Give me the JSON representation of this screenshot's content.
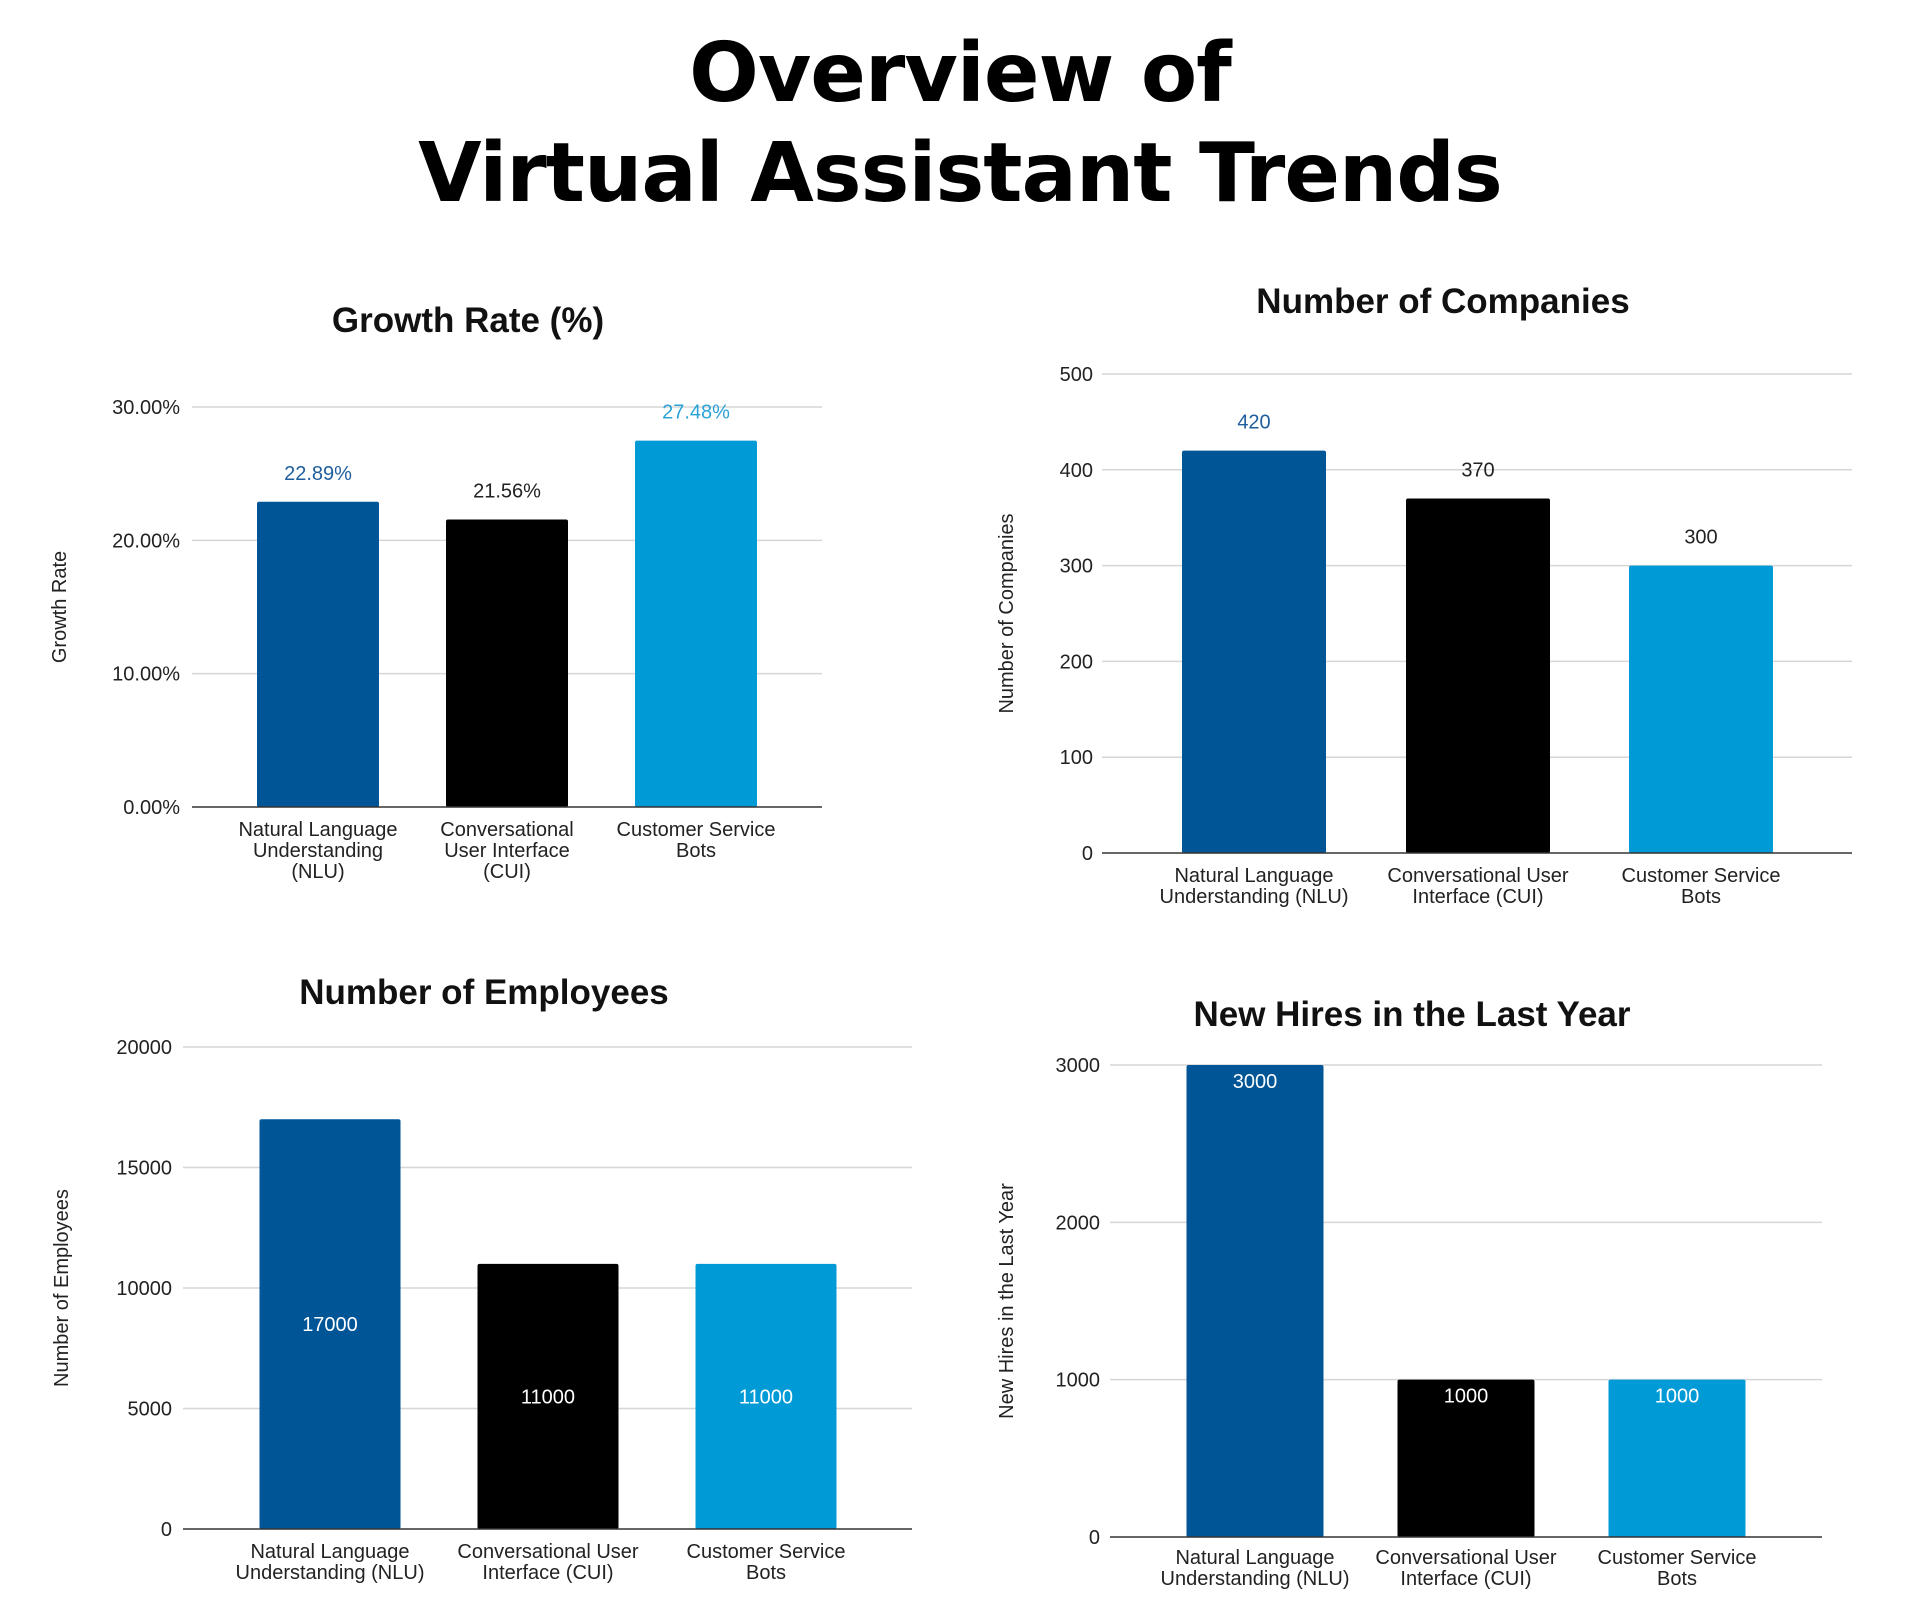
{
  "page": {
    "title_line1": "Overview of",
    "title_line2": "Virtual Assistant Trends"
  },
  "colors": {
    "nlu": "#005597",
    "cui": "#000000",
    "csb": "#009ad7"
  },
  "chart_data": [
    {
      "type": "bar",
      "title": "Growth Rate (%)",
      "ylabel": "Growth Rate",
      "xlabel": "",
      "categories": [
        "Natural Language Understanding (NLU)",
        "Conversational User Interface (CUI)",
        "Customer Service Bots"
      ],
      "category_lines": [
        [
          "Natural Language",
          "Understanding",
          "(NLU)"
        ],
        [
          "Conversational",
          "User Interface",
          "(CUI)"
        ],
        [
          "Customer Service",
          "Bots"
        ]
      ],
      "values": [
        22.89,
        21.56,
        27.48
      ],
      "data_labels": [
        "22.89%",
        "21.56%",
        "27.48%"
      ],
      "data_label_colors": [
        "#1f5e9c",
        "#222222",
        "#2ba3d6"
      ],
      "data_label_position": "above",
      "ylim": [
        0,
        30
      ],
      "yticks": [
        0,
        10,
        20,
        30
      ],
      "ytick_labels": [
        "0.00%",
        "10.00%",
        "20.00%",
        "30.00%"
      ],
      "grid": true
    },
    {
      "type": "bar",
      "title": "Number of Companies",
      "ylabel": "Number of Companies",
      "xlabel": "",
      "categories": [
        "Natural Language Understanding (NLU)",
        "Conversational User Interface (CUI)",
        "Customer Service Bots"
      ],
      "category_lines": [
        [
          "Natural Language",
          "Understanding (NLU)"
        ],
        [
          "Conversational User",
          "Interface (CUI)"
        ],
        [
          "Customer Service",
          "Bots"
        ]
      ],
      "values": [
        420,
        370,
        300
      ],
      "data_labels": [
        "420",
        "370",
        "300"
      ],
      "data_label_colors": [
        "#1f5e9c",
        "#222222",
        "#222222"
      ],
      "data_label_position": "above",
      "ylim": [
        0,
        500
      ],
      "yticks": [
        0,
        100,
        200,
        300,
        400,
        500
      ],
      "ytick_labels": [
        "0",
        "100",
        "200",
        "300",
        "400",
        "500"
      ],
      "grid": true
    },
    {
      "type": "bar",
      "title": "Number of Employees",
      "ylabel": "Number of Employees",
      "xlabel": "",
      "categories": [
        "Natural Language Understanding (NLU)",
        "Conversational User Interface (CUI)",
        "Customer Service Bots"
      ],
      "category_lines": [
        [
          "Natural Language",
          "Understanding (NLU)"
        ],
        [
          "Conversational User",
          "Interface (CUI)"
        ],
        [
          "Customer Service",
          "Bots"
        ]
      ],
      "values": [
        17000,
        11000,
        11000
      ],
      "data_labels": [
        "17000",
        "11000",
        "11000"
      ],
      "data_label_colors": [
        "#ffffff",
        "#ffffff",
        "#ffffff"
      ],
      "data_label_position": "center",
      "ylim": [
        0,
        20000
      ],
      "yticks": [
        0,
        5000,
        10000,
        15000,
        20000
      ],
      "ytick_labels": [
        "0",
        "5000",
        "10000",
        "15000",
        "20000"
      ],
      "grid": true
    },
    {
      "type": "bar",
      "title": "New Hires in the Last Year",
      "ylabel": "New Hires in the Last Year",
      "xlabel": "",
      "categories": [
        "Natural Language Understanding (NLU)",
        "Conversational User Interface (CUI)",
        "Customer Service Bots"
      ],
      "category_lines": [
        [
          "Natural Language",
          "Understanding (NLU)"
        ],
        [
          "Conversational User",
          "Interface (CUI)"
        ],
        [
          "Customer Service",
          "Bots"
        ]
      ],
      "values": [
        3000,
        1000,
        1000
      ],
      "data_labels": [
        "3000",
        "1000",
        "1000"
      ],
      "data_label_colors": [
        "#ffffff",
        "#ffffff",
        "#ffffff"
      ],
      "data_label_position": "inside-top",
      "ylim": [
        0,
        3000
      ],
      "yticks": [
        0,
        1000,
        2000,
        3000
      ],
      "ytick_labels": [
        "0",
        "1000",
        "2000",
        "3000"
      ],
      "grid": true
    }
  ]
}
